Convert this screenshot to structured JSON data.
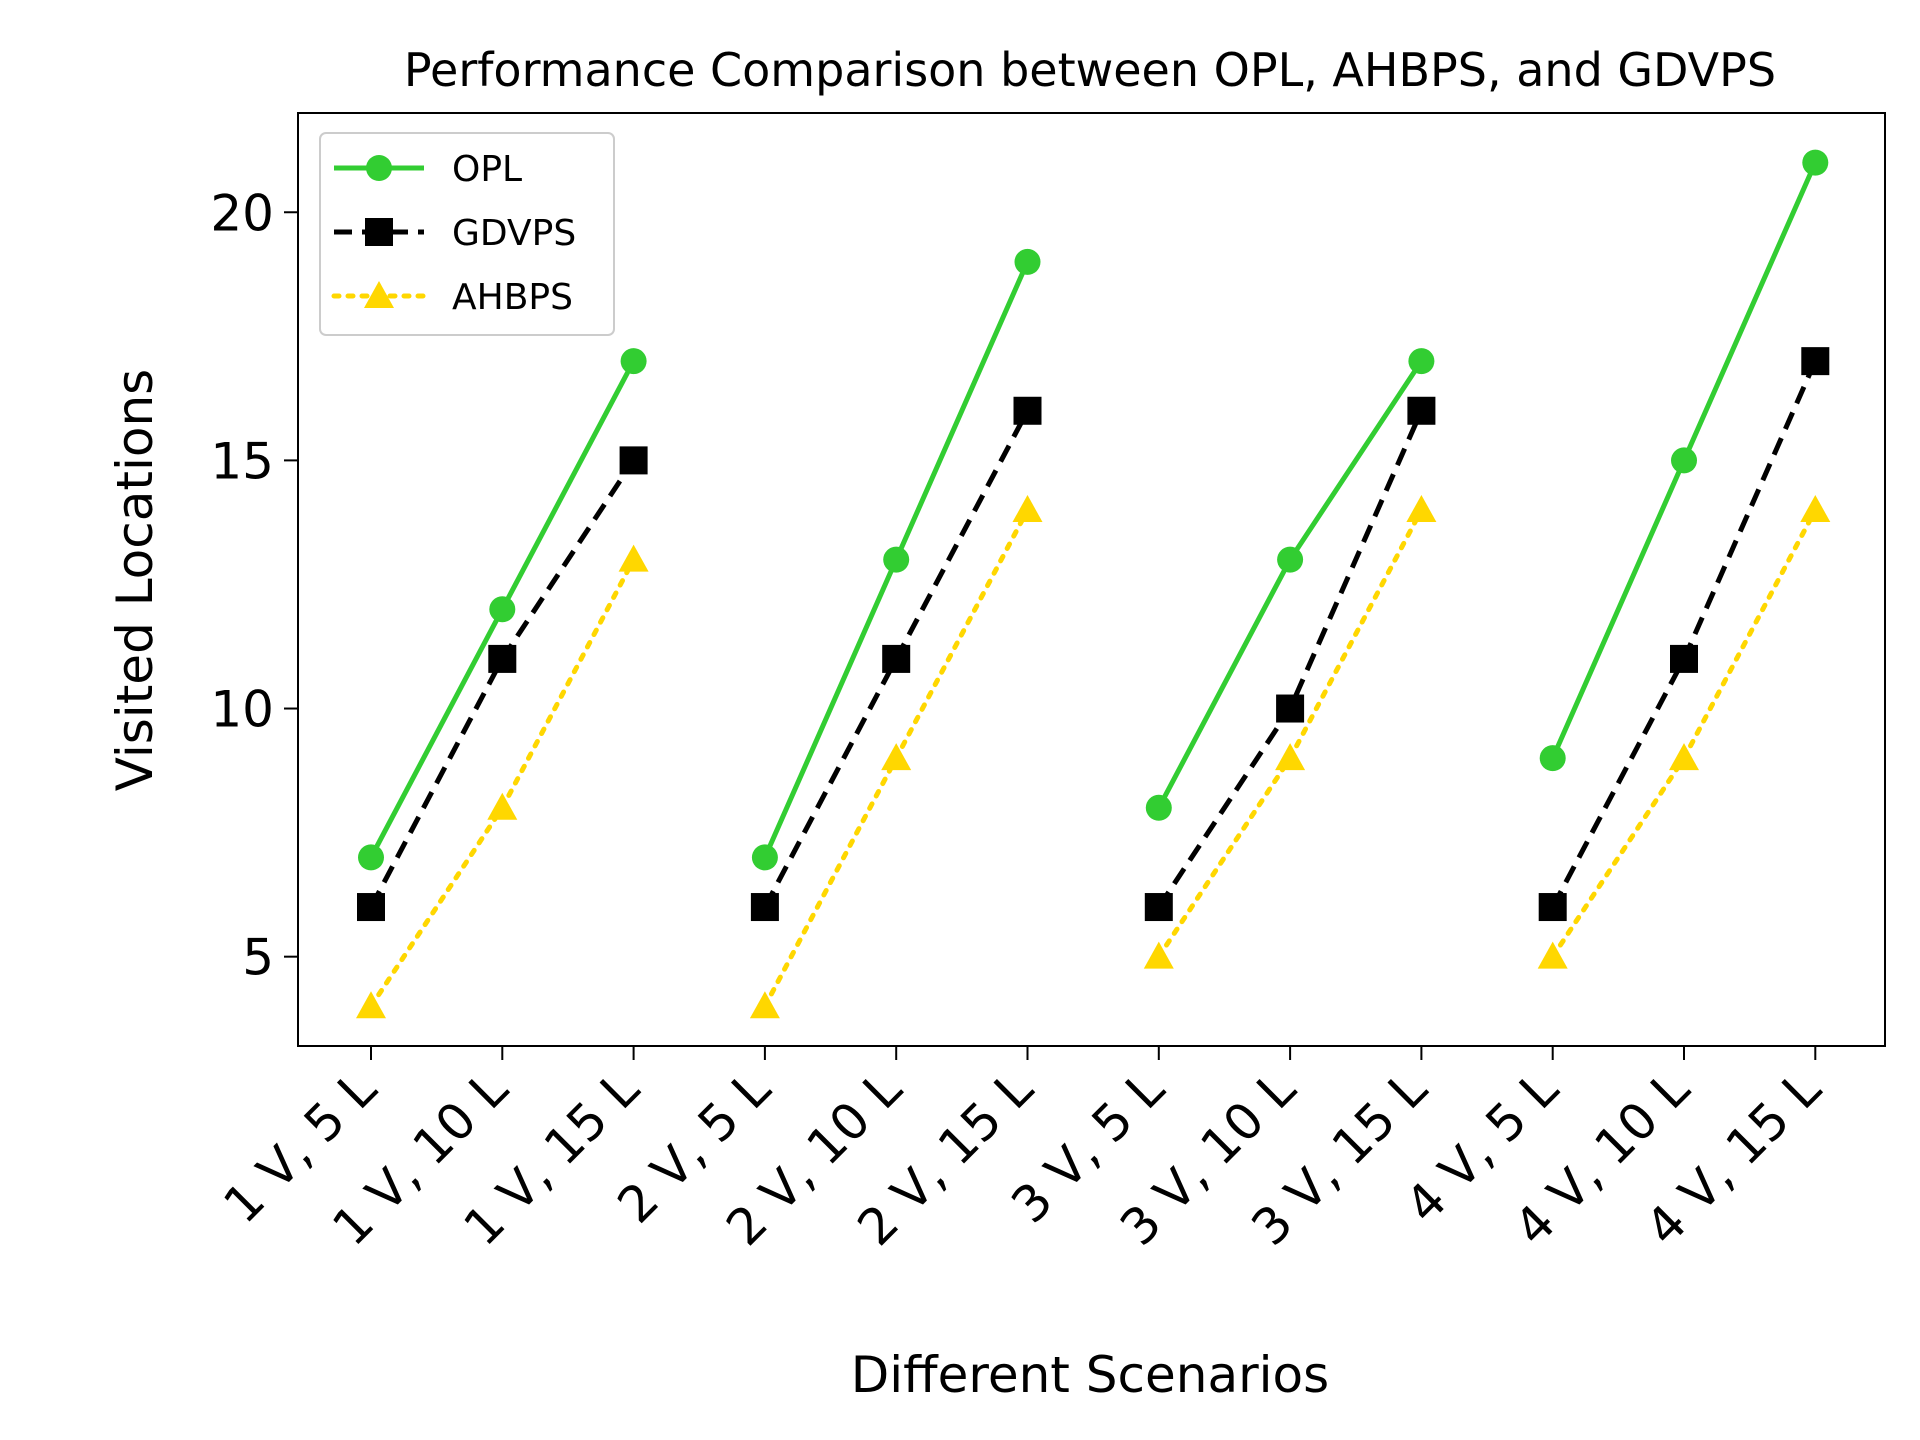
{
  "chart_data": {
    "type": "line",
    "title": "Performance Comparison between OPL, AHBPS, and GDVPS",
    "xlabel": "Different Scenarios",
    "ylabel": "Visited Locations",
    "categories": [
      "1 V, 5 L",
      "1 V, 10 L",
      "1 V, 15 L",
      "2 V, 5 L",
      "2 V, 10 L",
      "2 V, 15 L",
      "3 V, 5 L",
      "3 V, 10 L",
      "3 V, 15 L",
      "4 V, 5 L",
      "4 V, 10 L",
      "4 V, 15 L"
    ],
    "groups": [
      [
        0,
        1,
        2
      ],
      [
        3,
        4,
        5
      ],
      [
        6,
        7,
        8
      ],
      [
        9,
        10,
        11
      ]
    ],
    "ylim": [
      3.2,
      22
    ],
    "yticks": [
      5,
      10,
      15,
      20
    ],
    "grid": false,
    "legend_position": "top-left",
    "series": [
      {
        "name": "OPL",
        "color": "#32cd32",
        "line": "solid",
        "marker": "circle",
        "values": [
          7,
          12,
          17,
          7,
          13,
          19,
          8,
          13,
          17,
          9,
          15,
          21
        ]
      },
      {
        "name": "GDVPS",
        "color": "#000000",
        "line": "dashed",
        "marker": "square",
        "values": [
          6,
          11,
          15,
          6,
          11,
          16,
          6,
          10,
          16,
          6,
          11,
          17
        ]
      },
      {
        "name": "AHBPS",
        "color": "#ffd700",
        "line": "dotted",
        "marker": "triangle",
        "values": [
          4,
          8,
          13,
          4,
          9,
          14,
          5,
          9,
          14,
          5,
          9,
          14
        ]
      }
    ]
  }
}
